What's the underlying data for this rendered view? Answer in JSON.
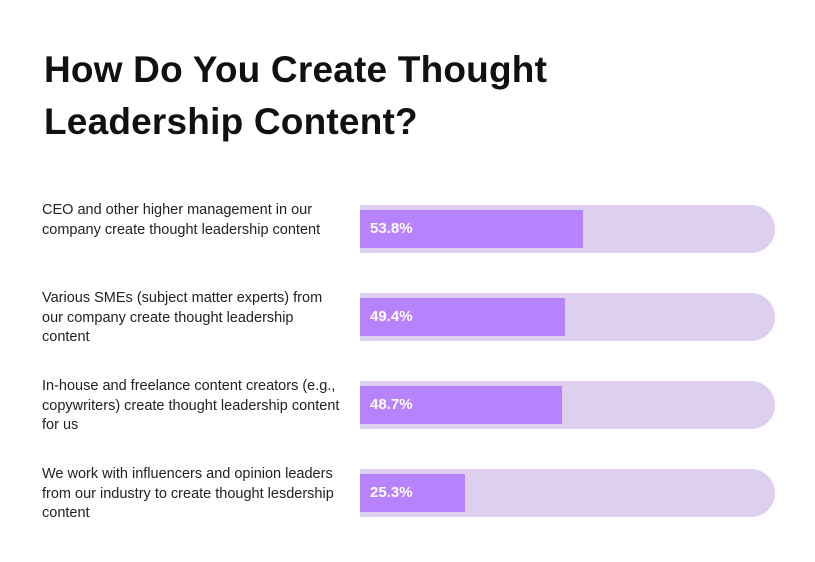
{
  "chart_data": {
    "type": "bar",
    "orientation": "horizontal",
    "title": "How Do You Create Thought Leadership Content?",
    "categories": [
      "CEO and other higher management in our company create thought leadership content",
      "Various SMEs (subject matter experts) from our company create thought leadership content",
      "In-house and freelance content creators (e.g., copywriters) create thought leadership content for us",
      "We work with influencers and opinion leaders from our industry to create thought lesdership content"
    ],
    "values": [
      53.8,
      49.4,
      48.7,
      25.3
    ],
    "value_labels": [
      "53.8%",
      "49.4%",
      "48.7%",
      "25.3%"
    ],
    "xlim": [
      0,
      100
    ],
    "grid": false,
    "colors": {
      "fill": "#b683fd",
      "track": "#ddd0ee"
    }
  }
}
